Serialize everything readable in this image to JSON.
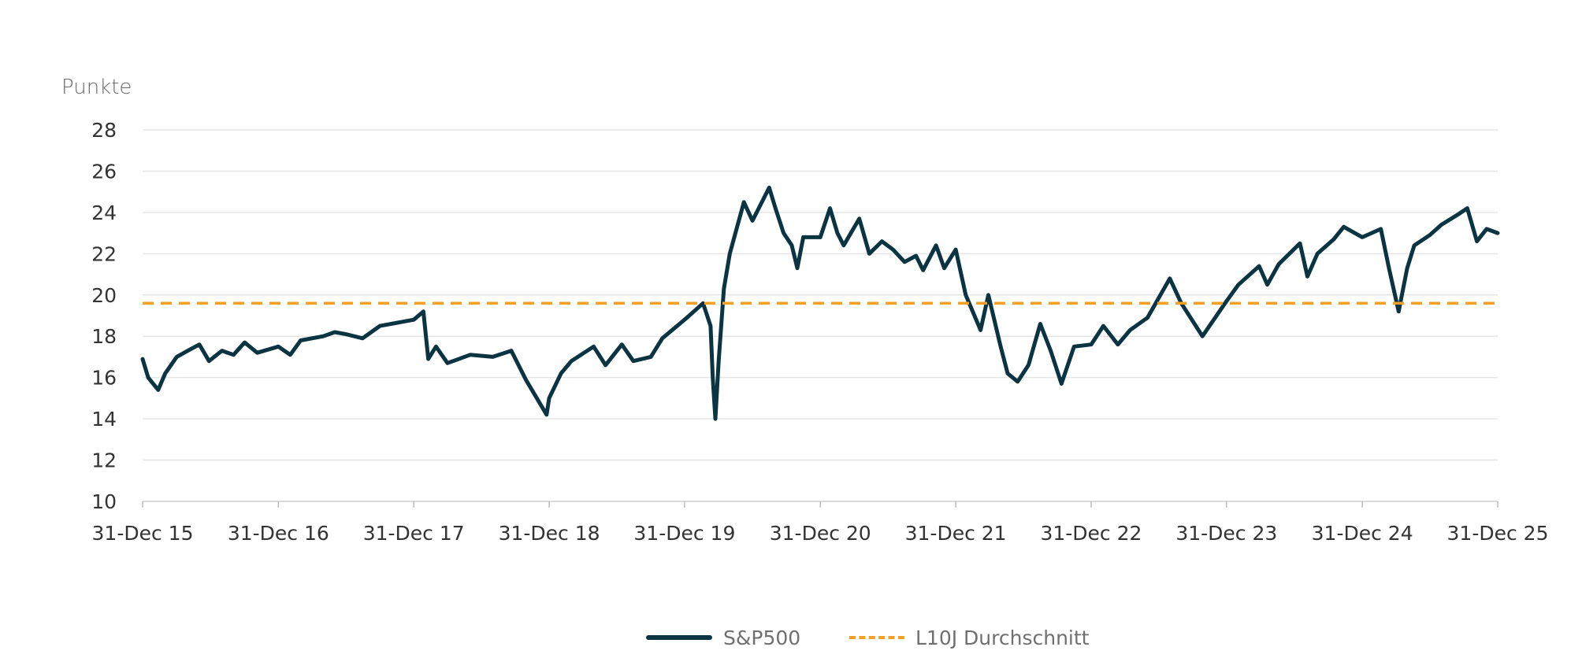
{
  "chart_data": {
    "type": "line",
    "title": "",
    "xlabel": "",
    "ylabel": "Punkte",
    "ylim": [
      10,
      28
    ],
    "yticks": [
      10,
      12,
      14,
      16,
      18,
      20,
      22,
      24,
      26,
      28
    ],
    "xlim": [
      "2015-12-31",
      "2025-12-31"
    ],
    "xticks": [
      {
        "date": "2015-12-31",
        "label": "31-Dec 15"
      },
      {
        "date": "2016-12-31",
        "label": "31-Dec 16"
      },
      {
        "date": "2017-12-31",
        "label": "31-Dec 17"
      },
      {
        "date": "2018-12-31",
        "label": "31-Dec 18"
      },
      {
        "date": "2019-12-31",
        "label": "31-Dec 19"
      },
      {
        "date": "2020-12-31",
        "label": "31-Dec 20"
      },
      {
        "date": "2021-12-31",
        "label": "31-Dec 21"
      },
      {
        "date": "2022-12-31",
        "label": "31-Dec 22"
      },
      {
        "date": "2023-12-31",
        "label": "31-Dec 23"
      },
      {
        "date": "2024-12-31",
        "label": "31-Dec 24"
      },
      {
        "date": "2025-12-31",
        "label": "31-Dec 25"
      }
    ],
    "grid": true,
    "legend_position": "bottom-center",
    "series": [
      {
        "name": "S&P500",
        "style": "solid",
        "color": "#0b3443",
        "points": [
          [
            "2015-12-31",
            16.9
          ],
          [
            "2016-01-15",
            16.0
          ],
          [
            "2016-02-11",
            15.4
          ],
          [
            "2016-03-01",
            16.2
          ],
          [
            "2016-04-01",
            17.0
          ],
          [
            "2016-05-01",
            17.3
          ],
          [
            "2016-06-01",
            17.6
          ],
          [
            "2016-06-27",
            16.8
          ],
          [
            "2016-08-01",
            17.3
          ],
          [
            "2016-09-01",
            17.1
          ],
          [
            "2016-10-01",
            17.7
          ],
          [
            "2016-11-04",
            17.2
          ],
          [
            "2016-12-31",
            17.5
          ],
          [
            "2017-02-01",
            17.1
          ],
          [
            "2017-03-01",
            17.8
          ],
          [
            "2017-05-01",
            18.0
          ],
          [
            "2017-06-01",
            18.2
          ],
          [
            "2017-07-01",
            18.1
          ],
          [
            "2017-08-15",
            17.9
          ],
          [
            "2017-10-01",
            18.5
          ],
          [
            "2017-12-31",
            18.8
          ],
          [
            "2018-01-26",
            19.2
          ],
          [
            "2018-02-08",
            16.9
          ],
          [
            "2018-03-01",
            17.5
          ],
          [
            "2018-04-01",
            16.7
          ],
          [
            "2018-06-01",
            17.1
          ],
          [
            "2018-08-01",
            17.0
          ],
          [
            "2018-09-20",
            17.3
          ],
          [
            "2018-10-29",
            15.9
          ],
          [
            "2018-12-24",
            14.2
          ],
          [
            "2018-12-31",
            15.0
          ],
          [
            "2019-02-01",
            16.2
          ],
          [
            "2019-03-01",
            16.8
          ],
          [
            "2019-04-30",
            17.5
          ],
          [
            "2019-06-01",
            16.6
          ],
          [
            "2019-07-15",
            17.6
          ],
          [
            "2019-08-15",
            16.8
          ],
          [
            "2019-10-01",
            17.0
          ],
          [
            "2019-11-01",
            17.9
          ],
          [
            "2019-12-31",
            18.8
          ],
          [
            "2020-02-19",
            19.6
          ],
          [
            "2020-03-10",
            18.5
          ],
          [
            "2020-03-16",
            16.0
          ],
          [
            "2020-03-23",
            14.0
          ],
          [
            "2020-04-01",
            16.8
          ],
          [
            "2020-04-15",
            20.3
          ],
          [
            "2020-05-01",
            22.0
          ],
          [
            "2020-06-08",
            24.5
          ],
          [
            "2020-07-01",
            23.6
          ],
          [
            "2020-08-15",
            25.2
          ],
          [
            "2020-09-01",
            24.2
          ],
          [
            "2020-09-23",
            23.0
          ],
          [
            "2020-10-15",
            22.4
          ],
          [
            "2020-10-30",
            21.3
          ],
          [
            "2020-11-15",
            22.8
          ],
          [
            "2020-12-31",
            22.8
          ],
          [
            "2021-01-26",
            24.2
          ],
          [
            "2021-02-15",
            23.0
          ],
          [
            "2021-03-04",
            22.4
          ],
          [
            "2021-04-15",
            23.7
          ],
          [
            "2021-05-12",
            22.0
          ],
          [
            "2021-06-15",
            22.6
          ],
          [
            "2021-07-15",
            22.2
          ],
          [
            "2021-08-15",
            21.6
          ],
          [
            "2021-09-15",
            21.9
          ],
          [
            "2021-10-04",
            21.2
          ],
          [
            "2021-11-08",
            22.4
          ],
          [
            "2021-11-30",
            21.3
          ],
          [
            "2021-12-31",
            22.2
          ],
          [
            "2022-01-27",
            20.0
          ],
          [
            "2022-03-08",
            18.3
          ],
          [
            "2022-03-29",
            20.0
          ],
          [
            "2022-05-01",
            17.5
          ],
          [
            "2022-05-20",
            16.2
          ],
          [
            "2022-06-16",
            15.8
          ],
          [
            "2022-07-15",
            16.6
          ],
          [
            "2022-08-16",
            18.6
          ],
          [
            "2022-09-13",
            17.3
          ],
          [
            "2022-10-12",
            15.7
          ],
          [
            "2022-11-15",
            17.5
          ],
          [
            "2022-12-31",
            17.6
          ],
          [
            "2023-02-02",
            18.5
          ],
          [
            "2023-03-13",
            17.6
          ],
          [
            "2023-04-15",
            18.3
          ],
          [
            "2023-06-01",
            18.9
          ],
          [
            "2023-07-31",
            20.8
          ],
          [
            "2023-08-31",
            19.6
          ],
          [
            "2023-10-27",
            18.0
          ],
          [
            "2023-12-31",
            19.7
          ],
          [
            "2024-02-01",
            20.5
          ],
          [
            "2024-03-28",
            21.4
          ],
          [
            "2024-04-19",
            20.5
          ],
          [
            "2024-05-20",
            21.5
          ],
          [
            "2024-07-16",
            22.5
          ],
          [
            "2024-08-05",
            20.9
          ],
          [
            "2024-09-01",
            22.0
          ],
          [
            "2024-10-15",
            22.7
          ],
          [
            "2024-11-11",
            23.3
          ],
          [
            "2024-12-31",
            22.8
          ],
          [
            "2025-02-19",
            23.2
          ],
          [
            "2025-03-13",
            21.3
          ],
          [
            "2025-04-08",
            19.2
          ],
          [
            "2025-05-01",
            21.3
          ],
          [
            "2025-05-20",
            22.4
          ],
          [
            "2025-07-01",
            22.9
          ],
          [
            "2025-08-01",
            23.4
          ],
          [
            "2025-09-15",
            23.9
          ],
          [
            "2025-10-10",
            24.2
          ],
          [
            "2025-11-05",
            22.6
          ],
          [
            "2025-12-01",
            23.2
          ],
          [
            "2025-12-31",
            23.0
          ]
        ]
      },
      {
        "name": "L10J Durchschnitt",
        "style": "dashed",
        "color": "#f4a024",
        "points": [
          [
            "2015-12-31",
            19.6
          ],
          [
            "2025-12-31",
            19.6
          ]
        ]
      }
    ]
  }
}
